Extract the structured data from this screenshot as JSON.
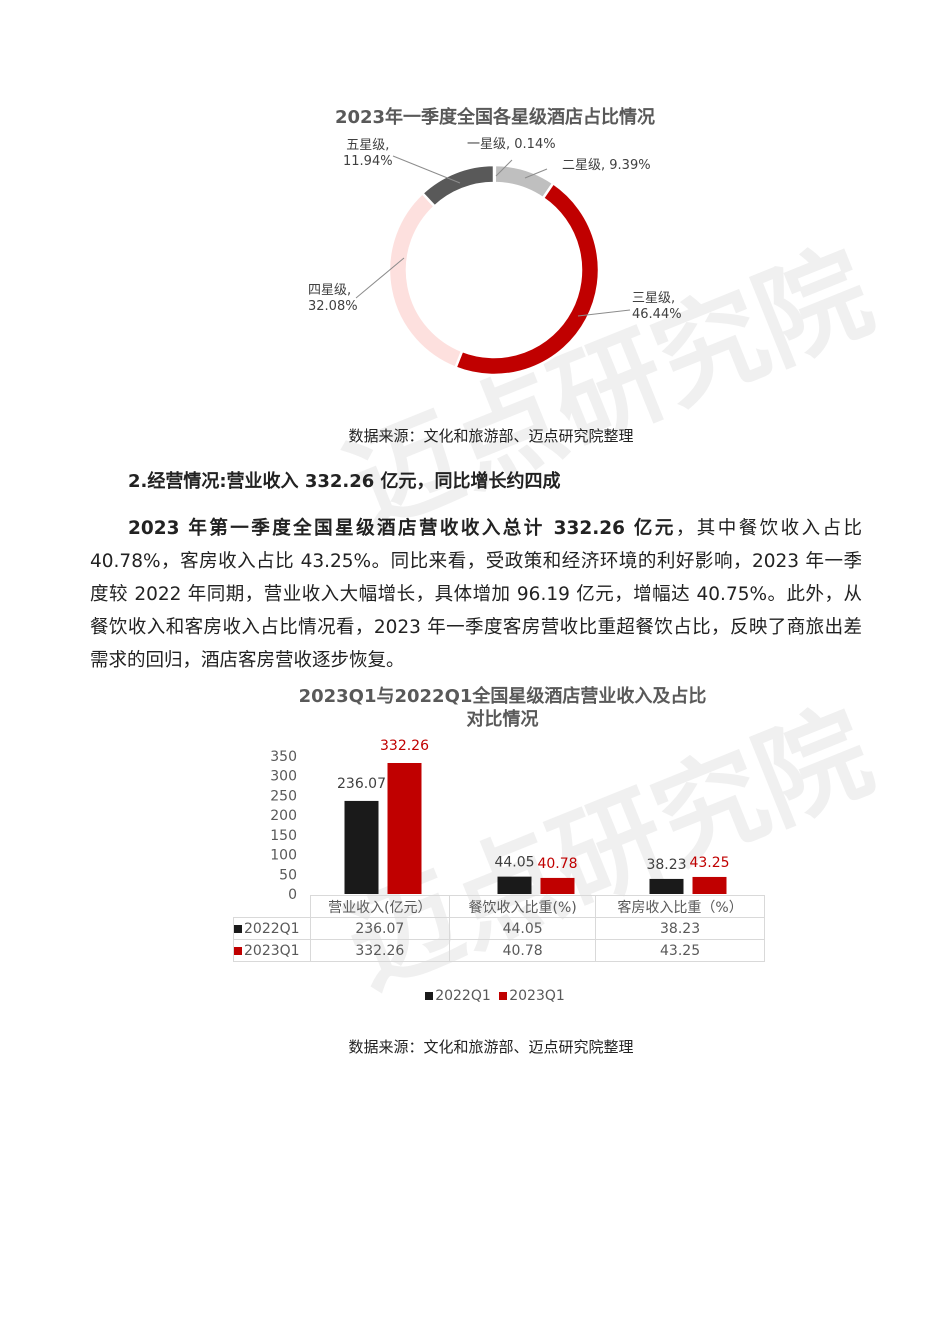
{
  "watermark": "迈点研究院 ACADEMY",
  "colors": {
    "black": "#1a1a1a",
    "red": "#c00000",
    "gray": "#bfbfbf",
    "darkgray": "#595959",
    "pink": "#fde0de"
  },
  "chart1": {
    "title": "2023年一季度全国各星级酒店占比情况",
    "source": "数据来源：文化和旅游部、迈点研究院整理"
  },
  "chart2": {
    "title_line1": "2023Q1与2022Q1全国星级酒店营业收入及占比",
    "title_line2": "对比情况",
    "source": "数据来源：文化和旅游部、迈点研究院整理"
  },
  "section": {
    "heading": "2.经营情况:营业收入 332.26 亿元，同比增长约四成",
    "para_bold": "2023 年第一季度全国星级酒店营收收入总计 332.26 亿元",
    "para_rest": "，其中餐饮收入占比 40.78%，客房收入占比 43.25%。同比来看，受政策和经济环境的利好影响，2023 年一季度较 2022 年同期，营业收入大幅增长，具体增加 96.19 亿元，增幅达 40.75%。此外，从餐饮收入和客房收入占比情况看，2023 年一季度客房营收比重超餐饮占比，反映了商旅出差需求的回归，酒店客房营收逐步恢复。"
  },
  "chart_data": [
    {
      "type": "pie",
      "title": "2023年一季度全国各星级酒店占比情况",
      "slices": [
        {
          "label": "一星级",
          "value": 0.14,
          "text": "一星级, 0.14%",
          "color": "#7f7f7f"
        },
        {
          "label": "二星级",
          "value": 9.39,
          "text": "二星级, 9.39%",
          "color": "#bfbfbf"
        },
        {
          "label": "三星级",
          "value": 46.44,
          "text": "三星级, 46.44%",
          "line1": "三星级,",
          "line2": "46.44%",
          "color": "#c00000"
        },
        {
          "label": "四星级",
          "value": 32.08,
          "text": "四星级, 32.08%",
          "line1": "四星级,",
          "line2": "32.08%",
          "color": "#fde0de"
        },
        {
          "label": "五星级",
          "value": 11.94,
          "text": "五星级, 11.94%",
          "line1": "五星级,",
          "line2": "11.94%",
          "color": "#595959"
        }
      ]
    },
    {
      "type": "bar",
      "title": "2023Q1与2022Q1全国星级酒店营业收入及占比对比情况",
      "categories": [
        "营业收入(亿元）",
        "餐饮收入比重(%)",
        "客房收入比重（%）"
      ],
      "series": [
        {
          "name": "2022Q1",
          "values": [
            236.07,
            44.05,
            38.23
          ],
          "labels": [
            "236.07",
            "44.05",
            "38.23"
          ],
          "color": "#1a1a1a"
        },
        {
          "name": "2023Q1",
          "values": [
            332.26,
            40.78,
            43.25
          ],
          "labels": [
            "332.26",
            "40.78",
            "43.25"
          ],
          "color": "#c00000"
        }
      ],
      "ylim": [
        0,
        350
      ],
      "yticks": [
        "0",
        "50",
        "100",
        "150",
        "200",
        "250",
        "300",
        "350"
      ],
      "legend": "bottom",
      "data_table": true
    }
  ]
}
